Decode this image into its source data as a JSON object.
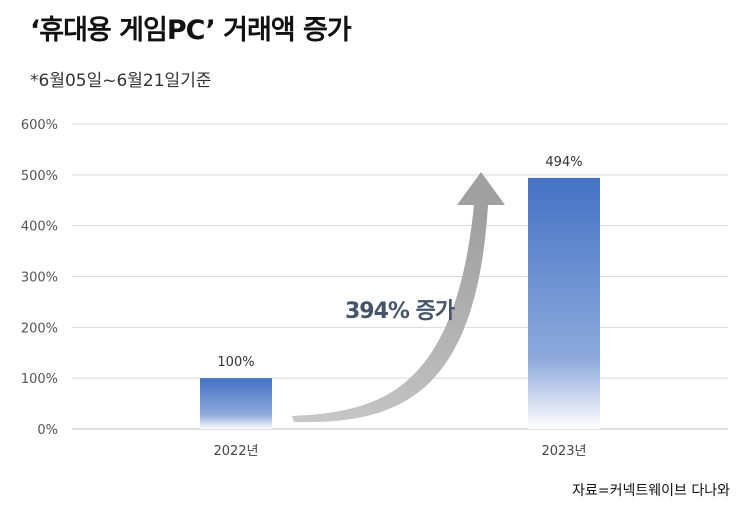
{
  "header": {
    "title": "‘휴대용 게임PC’ 거래액 증가",
    "subtitle": "*6월05일~6월21일기준"
  },
  "footer": {
    "source": "자료=커넥트웨이브 다나와"
  },
  "colors": {
    "bar_top": "#4472c4",
    "bar_bottom": "#ffffff",
    "arrow": "#a6a6a6",
    "annotation": "#44546a",
    "grid": "#d9d9d9"
  },
  "chart_data": {
    "type": "bar",
    "categories": [
      "2022년",
      "2023년"
    ],
    "values": [
      100,
      494
    ],
    "value_labels": [
      "100%",
      "494%"
    ],
    "ylim": [
      0,
      600
    ],
    "yticks": [
      0,
      100,
      200,
      300,
      400,
      500,
      600
    ],
    "ytick_labels": [
      "0%",
      "100%",
      "200%",
      "300%",
      "400%",
      "500%",
      "600%"
    ],
    "grid": true,
    "annotation": "394% 증가"
  }
}
